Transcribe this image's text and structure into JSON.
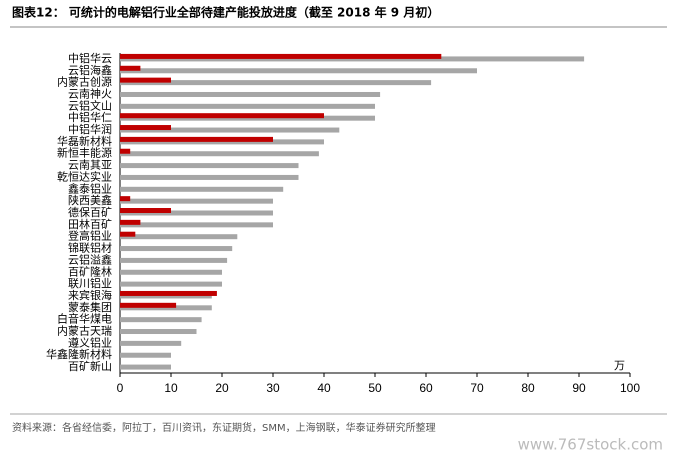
{
  "chart_data": {
    "type": "hbar",
    "title": "图表12：  可统计的电解铝行业全部待建产能投放进度（截至 2018 年 9 月初）",
    "x_label": "万",
    "source": "资料来源：各省经信委，阿拉丁，百川资讯，东证期货，SMM，上海钢联，华泰证券研究所整理",
    "categories": [
      "中铝华云",
      "云铝海鑫",
      "内蒙古创源",
      "云南神火",
      "云铝文山",
      "中铝华仁",
      "中铝华润",
      "华磊新材料",
      "新恒丰能源",
      "云南其亚",
      "乾恒达实业",
      "鑫泰铝业",
      "陕西美鑫",
      "德保百矿",
      "田林百矿",
      "登高铝业",
      "锦联铝材",
      "云铝溢鑫",
      "百矿隆林",
      "联川铝业",
      "来宾银海",
      "蒙泰集团",
      "白音华煤电",
      "内蒙古天瑞",
      "遵义铝业",
      "华鑫隆新材料",
      "百矿新山"
    ],
    "series": [
      {
        "color": "#a6a6a6",
        "values": [
          91,
          70,
          61,
          51,
          50,
          50,
          43,
          40,
          39,
          35,
          35,
          32,
          30,
          30,
          30,
          23,
          22,
          21,
          20,
          20,
          18,
          18,
          16,
          15,
          12,
          10,
          10
        ]
      },
      {
        "color": "#c00000",
        "values": [
          63,
          4,
          10,
          null,
          null,
          40,
          10,
          30,
          2,
          null,
          null,
          null,
          2,
          10,
          4,
          3,
          null,
          null,
          null,
          null,
          19,
          11,
          null,
          null,
          null,
          null,
          null
        ]
      }
    ],
    "xlim": [
      0,
      100
    ],
    "xticks": [
      0,
      10,
      20,
      30,
      40,
      50,
      60,
      70,
      80,
      90,
      100
    ],
    "grid": false
  },
  "watermark": "www.767stock.com"
}
